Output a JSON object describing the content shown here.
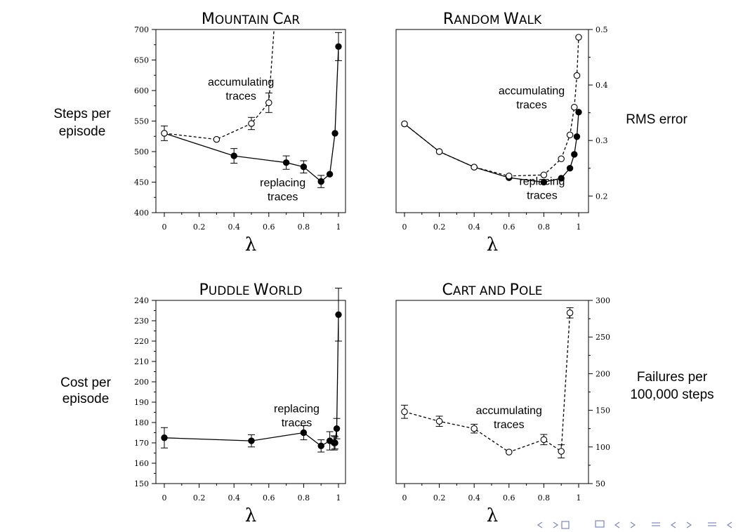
{
  "chart_data": [
    {
      "id": "mc",
      "type": "line",
      "title": {
        "first": "M",
        "rest": "OUNTAIN",
        "first2": "C",
        "rest2": "AR"
      },
      "ylabel": [
        "Steps per",
        "episode"
      ],
      "xlabel": "λ",
      "ylim": [
        400,
        700
      ],
      "xlim": [
        0,
        1
      ],
      "yticks": [
        400,
        450,
        500,
        550,
        600,
        650,
        700
      ],
      "xticks": [
        0,
        0.2,
        0.4,
        0.6,
        0.8,
        1
      ],
      "yaxis_side": "left",
      "series": [
        {
          "style": "solid",
          "marker": "filled",
          "x": [
            0,
            0.4,
            0.7,
            0.8,
            0.9,
            0.95,
            0.98,
            1.0
          ],
          "y": [
            530,
            493,
            482,
            475,
            451,
            463,
            530,
            672
          ],
          "err": [
            12,
            12,
            11,
            10,
            10,
            0,
            0,
            23
          ]
        },
        {
          "style": "dashed",
          "marker": "open",
          "x": [
            0,
            0.3,
            0.5,
            0.6
          ],
          "y": [
            530,
            520,
            546,
            580
          ],
          "err": [
            0,
            0,
            10,
            16
          ],
          "tail": {
            "x": 0.63,
            "y": 720
          }
        }
      ],
      "annotations": [
        {
          "lines": [
            "accumulating",
            "traces"
          ],
          "x": 0.44,
          "y": 608
        },
        {
          "lines": [
            "replacing",
            "traces"
          ],
          "x": 0.68,
          "y": 443
        }
      ]
    },
    {
      "id": "rw",
      "type": "line",
      "title": {
        "first": "R",
        "rest": "ANDOM",
        "first2": "W",
        "rest2": "ALK"
      },
      "ylabel": [
        "RMS error"
      ],
      "xlabel": "λ",
      "ylim": [
        0.17,
        0.5
      ],
      "xlim": [
        0,
        1
      ],
      "yticks": [
        0.2,
        0.3,
        0.4,
        0.5
      ],
      "xticks": [
        0,
        0.2,
        0.4,
        0.6,
        0.8,
        1
      ],
      "yaxis_side": "right",
      "series": [
        {
          "style": "solid",
          "marker": "filled",
          "x": [
            0,
            0.2,
            0.4,
            0.6,
            0.8,
            0.9,
            0.95,
            0.975,
            0.99,
            1.0
          ],
          "y": [
            0.33,
            0.28,
            0.252,
            0.233,
            0.225,
            0.232,
            0.25,
            0.275,
            0.307,
            0.351
          ],
          "err": []
        },
        {
          "style": "dashed",
          "marker": "open",
          "x": [
            0,
            0.2,
            0.4,
            0.6,
            0.8,
            0.9,
            0.95,
            0.975,
            0.99,
            1.0
          ],
          "y": [
            0.33,
            0.28,
            0.252,
            0.236,
            0.238,
            0.267,
            0.31,
            0.36,
            0.417,
            0.486
          ],
          "err": []
        }
      ],
      "annotations": [
        {
          "lines": [
            "accumulating",
            "traces"
          ],
          "x": 0.73,
          "y": 0.383
        },
        {
          "lines": [
            "replacing",
            "traces"
          ],
          "x": 0.79,
          "y": 0.22
        }
      ]
    },
    {
      "id": "pw",
      "type": "line",
      "title": {
        "first": "P",
        "rest": "UDDLE",
        "first2": "W",
        "rest2": "ORLD"
      },
      "ylabel": [
        "Cost per",
        "episode"
      ],
      "xlabel": "λ",
      "ylim": [
        150,
        240
      ],
      "xlim": [
        0,
        1
      ],
      "yticks": [
        150,
        160,
        170,
        180,
        190,
        200,
        210,
        220,
        230,
        240
      ],
      "xticks": [
        0,
        0.2,
        0.4,
        0.6,
        0.8,
        1
      ],
      "yaxis_side": "left",
      "series": [
        {
          "style": "solid",
          "marker": "filled",
          "x": [
            0,
            0.5,
            0.8,
            0.9,
            0.95,
            0.975,
            0.98,
            0.99,
            1.0
          ],
          "y": [
            172.5,
            171,
            175,
            168.5,
            171,
            170,
            170,
            177,
            233
          ],
          "err": [
            5,
            3,
            3.5,
            3,
            4.5,
            3.5,
            3,
            5,
            13
          ]
        }
      ],
      "annotations": [
        {
          "lines": [
            "replacing",
            "traces"
          ],
          "x": 0.76,
          "y": 185
        }
      ]
    },
    {
      "id": "cp",
      "type": "line",
      "title": {
        "first": "C",
        "rest": "ART AND",
        "first2": "P",
        "rest2": "OLE"
      },
      "ylabel": [
        "Failures per",
        "100,000 steps"
      ],
      "xlabel": "λ",
      "ylim": [
        50,
        300
      ],
      "xlim": [
        0,
        1
      ],
      "yticks": [
        50,
        100,
        150,
        200,
        250,
        300
      ],
      "xticks": [
        0,
        0.2,
        0.4,
        0.6,
        0.8,
        1
      ],
      "yaxis_side": "right",
      "series": [
        {
          "style": "dashed",
          "marker": "open",
          "x": [
            0,
            0.2,
            0.4,
            0.6,
            0.8,
            0.9,
            0.95
          ],
          "y": [
            148,
            135,
            125,
            93,
            110,
            94,
            283
          ],
          "err": [
            9,
            7,
            6,
            0,
            7,
            9,
            7
          ]
        }
      ],
      "annotations": [
        {
          "lines": [
            "accumulating",
            "traces"
          ],
          "x": 0.6,
          "y": 145
        }
      ]
    }
  ]
}
